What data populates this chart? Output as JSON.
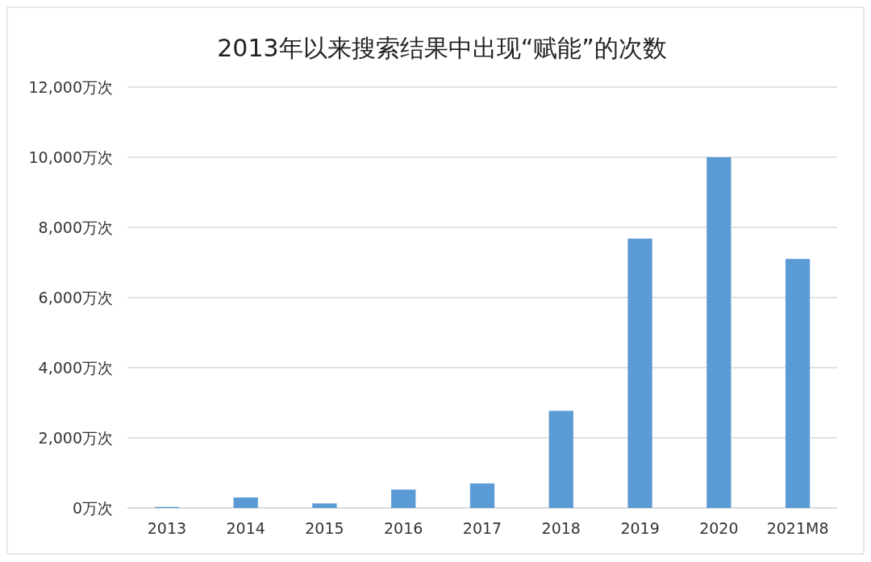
{
  "chart_data": {
    "type": "bar",
    "title": "2013年以来搜索结果中出现“赋能”的次数",
    "categories": [
      "2013",
      "2014",
      "2015",
      "2016",
      "2017",
      "2018",
      "2019",
      "2020",
      "2021M8"
    ],
    "values": [
      30,
      300,
      130,
      525,
      700,
      2770,
      7680,
      10000,
      7100
    ],
    "color": "#5b9bd5",
    "ylim": [
      0,
      12000
    ],
    "yticks": [
      {
        "value": 0,
        "label": "0万次"
      },
      {
        "value": 2000,
        "label": "2,000万次"
      },
      {
        "value": 4000,
        "label": "4,000万次"
      },
      {
        "value": 6000,
        "label": "6,000万次"
      },
      {
        "value": 8000,
        "label": "8,000万次"
      },
      {
        "value": 10000,
        "label": "10,000万次"
      },
      {
        "value": 12000,
        "label": "12,000万次"
      }
    ],
    "grid": "y"
  }
}
